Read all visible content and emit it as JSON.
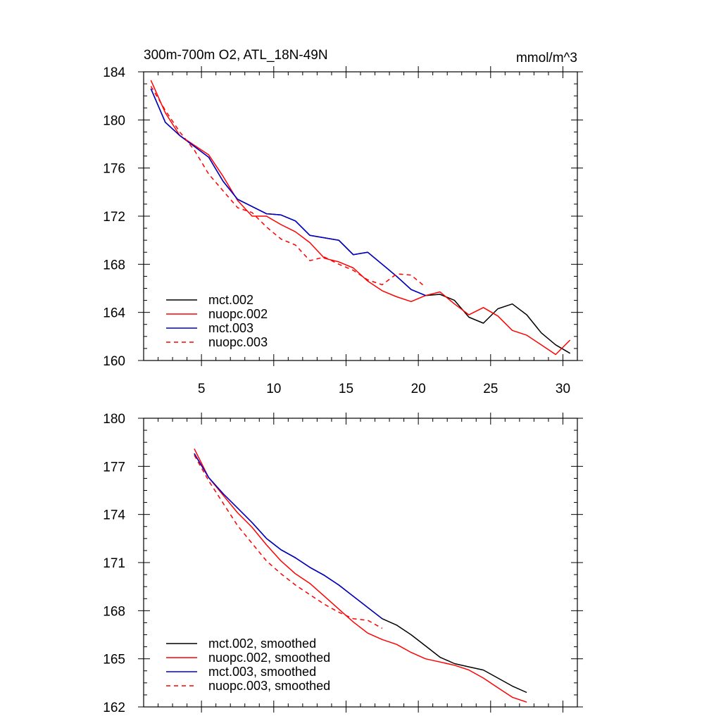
{
  "title_left": "300m-700m O2, ATL_18N-49N",
  "title_right": "mmol/m^3",
  "chart_data": [
    {
      "type": "line",
      "xlim": [
        1,
        31
      ],
      "ylim": [
        160,
        184
      ],
      "xticks": [
        5,
        10,
        15,
        20,
        25,
        30
      ],
      "xtick_labels": [
        "5",
        "10",
        "15",
        "20",
        "25",
        "30"
      ],
      "yticks": [
        160,
        164,
        168,
        172,
        176,
        180,
        184
      ],
      "ytick_labels": [
        "160",
        "164",
        "168",
        "172",
        "176",
        "180",
        "184"
      ],
      "series": [
        {
          "name": "mct.002",
          "color": "#000000",
          "dashed": false,
          "x": [
            1.5,
            2.5,
            3.5,
            4.5,
            5.5,
            6.5,
            7.5,
            8.5,
            9.5,
            10.5,
            11.5,
            12.5,
            13.5,
            14.5,
            15.5,
            16.5,
            17.5,
            18.5,
            19.5,
            20.5,
            21.5,
            22.5,
            23.5,
            24.5,
            25.5,
            26.5,
            27.5,
            28.5,
            29.5,
            30.5
          ],
          "values": [
            182.6,
            179.8,
            178.7,
            177.8,
            176.9,
            174.9,
            173.4,
            172.8,
            172.2,
            172.1,
            171.6,
            170.4,
            170.2,
            170.0,
            168.8,
            169.0,
            168.0,
            167.0,
            165.9,
            165.4,
            165.5,
            165.0,
            163.6,
            163.1,
            164.3,
            164.7,
            163.8,
            162.3,
            161.3,
            160.6
          ]
        },
        {
          "name": "nuopc.002",
          "color": "#ff0000",
          "dashed": false,
          "x": [
            1.5,
            2.5,
            3.5,
            4.5,
            5.5,
            6.5,
            7.5,
            8.5,
            9.5,
            10.5,
            11.5,
            12.5,
            13.5,
            14.5,
            15.5,
            16.5,
            17.5,
            18.5,
            19.5,
            20.5,
            21.5,
            22.5,
            23.5,
            24.5,
            25.5,
            26.5,
            27.5,
            28.5,
            29.5,
            30.5
          ],
          "values": [
            183.3,
            180.6,
            178.7,
            177.9,
            177.1,
            175.3,
            173.3,
            172.0,
            172.0,
            171.3,
            170.7,
            169.8,
            168.5,
            168.2,
            167.7,
            166.6,
            165.8,
            165.3,
            164.9,
            165.4,
            165.7,
            164.7,
            163.8,
            164.4,
            163.7,
            162.5,
            162.1,
            161.3,
            160.5,
            161.7
          ]
        },
        {
          "name": "mct.003",
          "color": "#0000cc",
          "dashed": false,
          "x": [
            1.5,
            2.5,
            3.5,
            4.5,
            5.5,
            6.5,
            7.5,
            8.5,
            9.5,
            10.5,
            11.5,
            12.5,
            13.5,
            14.5,
            15.5,
            16.5,
            17.5,
            18.5,
            19.5,
            20.5
          ],
          "values": [
            182.6,
            179.8,
            178.7,
            177.8,
            176.9,
            174.9,
            173.4,
            172.8,
            172.2,
            172.1,
            171.6,
            170.4,
            170.2,
            170.0,
            168.8,
            169.0,
            168.0,
            167.0,
            165.9,
            165.4
          ]
        },
        {
          "name": "nuopc.003",
          "color": "#ff0000",
          "dashed": true,
          "x": [
            1.5,
            2.5,
            3.5,
            4.5,
            5.5,
            6.5,
            7.5,
            8.5,
            9.5,
            10.5,
            11.5,
            12.5,
            13.5,
            14.5,
            15.5,
            16.5,
            17.5,
            18.5,
            19.5,
            20.5
          ],
          "values": [
            182.8,
            180.8,
            179.0,
            177.5,
            175.5,
            174.1,
            172.7,
            172.3,
            171.1,
            170.1,
            169.6,
            168.3,
            168.6,
            168.0,
            167.5,
            166.7,
            166.3,
            167.2,
            167.1,
            166.1
          ]
        }
      ]
    },
    {
      "type": "line",
      "xlim": [
        1,
        31
      ],
      "ylim": [
        162,
        180
      ],
      "xticks": [
        5,
        10,
        15,
        20,
        25,
        30
      ],
      "xtick_labels": [],
      "yticks": [
        162,
        165,
        168,
        171,
        174,
        177,
        180
      ],
      "ytick_labels": [
        "162",
        "165",
        "168",
        "171",
        "174",
        "177",
        "180"
      ],
      "series": [
        {
          "name": "mct.002, smoothed",
          "color": "#000000",
          "dashed": false,
          "x": [
            4.5,
            5.5,
            6.5,
            7.5,
            8.5,
            9.5,
            10.5,
            11.5,
            12.5,
            13.5,
            14.5,
            15.5,
            16.5,
            17.5,
            18.5,
            19.5,
            20.5,
            21.5,
            22.5,
            23.5,
            24.5,
            25.5,
            26.5,
            27.5
          ],
          "values": [
            177.8,
            176.3,
            175.3,
            174.4,
            173.5,
            172.5,
            171.8,
            171.3,
            170.7,
            170.2,
            169.6,
            168.9,
            168.2,
            167.5,
            167.1,
            166.5,
            165.8,
            165.1,
            164.7,
            164.5,
            164.3,
            163.8,
            163.3,
            162.9
          ]
        },
        {
          "name": "nuopc.002, smoothed",
          "color": "#ff0000",
          "dashed": false,
          "x": [
            4.5,
            5.5,
            6.5,
            7.5,
            8.5,
            9.5,
            10.5,
            11.5,
            12.5,
            13.5,
            14.5,
            15.5,
            16.5,
            17.5,
            18.5,
            19.5,
            20.5,
            21.5,
            22.5,
            23.5,
            24.5,
            25.5,
            26.5,
            27.5
          ],
          "values": [
            178.1,
            176.3,
            175.2,
            174.1,
            173.2,
            172.1,
            171.1,
            170.3,
            169.7,
            168.9,
            168.1,
            167.3,
            166.6,
            166.2,
            165.9,
            165.4,
            165.0,
            164.8,
            164.6,
            164.3,
            163.8,
            163.2,
            162.6,
            162.3
          ]
        },
        {
          "name": "mct.003, smoothed",
          "color": "#0000cc",
          "dashed": false,
          "x": [
            4.5,
            5.5,
            6.5,
            7.5,
            8.5,
            9.5,
            10.5,
            11.5,
            12.5,
            13.5,
            14.5,
            15.5,
            16.5,
            17.5
          ],
          "values": [
            177.8,
            176.3,
            175.3,
            174.4,
            173.5,
            172.5,
            171.8,
            171.3,
            170.7,
            170.2,
            169.6,
            168.9,
            168.2,
            167.5
          ]
        },
        {
          "name": "nuopc.003, smoothed",
          "color": "#ff0000",
          "dashed": true,
          "x": [
            4.5,
            5.5,
            6.5,
            7.5,
            8.5,
            9.5,
            10.5,
            11.5,
            12.5,
            13.5,
            14.5,
            15.5,
            16.5,
            17.5
          ],
          "values": [
            177.7,
            176.1,
            174.7,
            173.3,
            172.2,
            171.1,
            170.3,
            169.6,
            169.0,
            168.4,
            167.9,
            167.5,
            167.4,
            166.9
          ]
        }
      ]
    }
  ]
}
